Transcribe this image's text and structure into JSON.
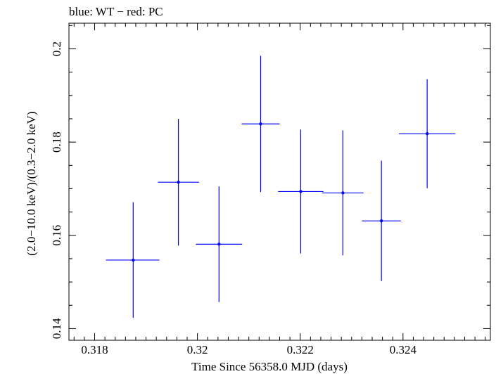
{
  "chart_data": {
    "type": "scatter",
    "title": "blue: WT − red: PC",
    "xlabel": "Time Since 56358.0 MJD (days)",
    "ylabel": "(2.0−10.0 keV)/(0.3−2.0 keV)",
    "xlim": [
      0.3175,
      0.3257
    ],
    "ylim": [
      0.1375,
      0.2055
    ],
    "x_ticks": [
      0.318,
      0.32,
      0.322,
      0.324
    ],
    "x_tick_labels": [
      "0.318",
      "0.32",
      "0.322",
      "0.324"
    ],
    "y_ticks": [
      0.14,
      0.16,
      0.18,
      0.2
    ],
    "y_tick_labels": [
      "0.14",
      "0.16",
      "0.18",
      "0.2"
    ],
    "grid": false,
    "series": [
      {
        "color": "#0000ff",
        "points": [
          {
            "x": 0.31875,
            "y": 0.1547,
            "xerr_lo": 0.00053,
            "xerr_hi": 0.00051,
            "yerr_lo": 0.0124,
            "yerr_hi": 0.0124
          },
          {
            "x": 0.31963,
            "y": 0.1714,
            "xerr_lo": 0.0004,
            "xerr_hi": 0.0004,
            "yerr_lo": 0.0136,
            "yerr_hi": 0.0136
          },
          {
            "x": 0.32042,
            "y": 0.1581,
            "xerr_lo": 0.00045,
            "xerr_hi": 0.00045,
            "yerr_lo": 0.0124,
            "yerr_hi": 0.0124
          },
          {
            "x": 0.32123,
            "y": 0.1839,
            "xerr_lo": 0.00037,
            "xerr_hi": 0.00037,
            "yerr_lo": 0.0146,
            "yerr_hi": 0.0146
          },
          {
            "x": 0.32201,
            "y": 0.1694,
            "xerr_lo": 0.00044,
            "xerr_hi": 0.00044,
            "yerr_lo": 0.0133,
            "yerr_hi": 0.0133
          },
          {
            "x": 0.32283,
            "y": 0.1691,
            "xerr_lo": 0.0004,
            "xerr_hi": 0.0004,
            "yerr_lo": 0.0134,
            "yerr_hi": 0.0134
          },
          {
            "x": 0.32358,
            "y": 0.1631,
            "xerr_lo": 0.00038,
            "xerr_hi": 0.00038,
            "yerr_lo": 0.0129,
            "yerr_hi": 0.0129
          },
          {
            "x": 0.32447,
            "y": 0.1818,
            "xerr_lo": 0.00055,
            "xerr_hi": 0.00055,
            "yerr_lo": 0.0117,
            "yerr_hi": 0.0117
          }
        ]
      }
    ]
  }
}
